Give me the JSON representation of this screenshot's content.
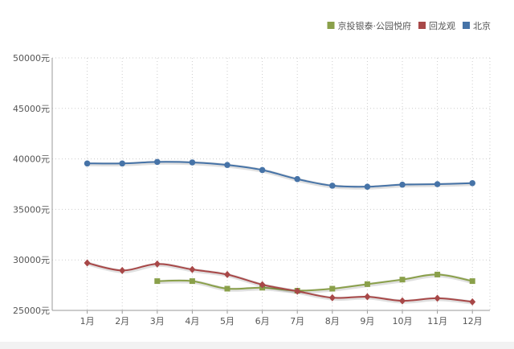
{
  "chart_data": {
    "type": "line",
    "categories": [
      "1月",
      "2月",
      "3月",
      "4月",
      "5月",
      "6月",
      "7月",
      "8月",
      "9月",
      "10月",
      "11月",
      "12月"
    ],
    "y_ticks": [
      "25000元",
      "30000元",
      "35000元",
      "40000元",
      "45000元",
      "50000元"
    ],
    "ylim": [
      25000,
      50000
    ],
    "grid": true,
    "legend_position": "top-right",
    "series": [
      {
        "name": "京投银泰·公园悦府",
        "color": "#8aa04a",
        "marker": "square",
        "values": [
          null,
          null,
          27900,
          27900,
          27150,
          27250,
          26950,
          27150,
          27600,
          28050,
          28550,
          27900
        ]
      },
      {
        "name": "回龙观",
        "color": "#a84848",
        "marker": "diamond",
        "values": [
          29700,
          28950,
          29600,
          29050,
          28550,
          27550,
          26900,
          26250,
          26350,
          25950,
          26200,
          25850
        ]
      },
      {
        "name": "北京",
        "color": "#4673a7",
        "marker": "circle",
        "values": [
          39550,
          39550,
          39700,
          39650,
          39400,
          38900,
          38000,
          37350,
          37250,
          37450,
          37500,
          37600
        ]
      }
    ]
  }
}
